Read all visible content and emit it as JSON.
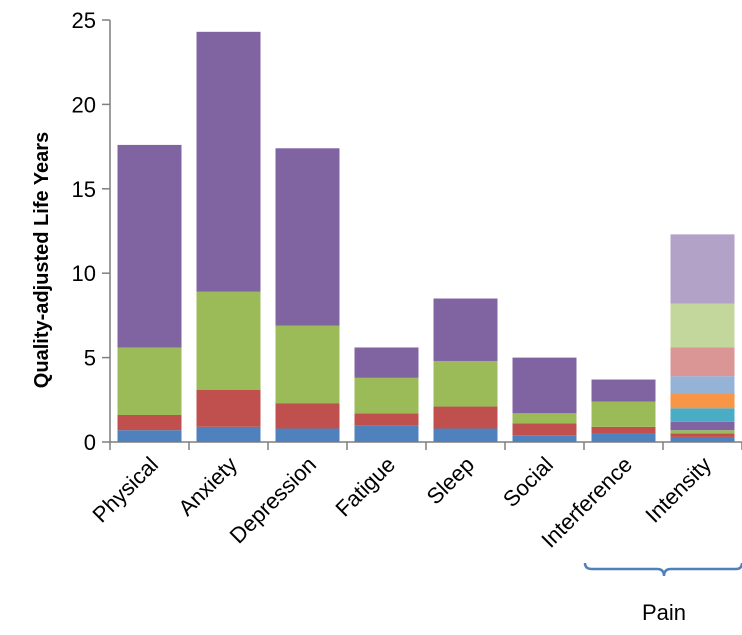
{
  "chart_data": {
    "type": "bar",
    "stacked": true,
    "title": "",
    "xlabel": "",
    "ylabel": "Quality-adjusted Life Years",
    "ylim": [
      0,
      25
    ],
    "yticks": [
      "0",
      "5",
      "10",
      "15",
      "20",
      "25"
    ],
    "categories": [
      "Physical",
      "Anxiety",
      "Depression",
      "Fatigue",
      "Sleep",
      "Social",
      "Interference",
      "Intensity"
    ],
    "group_label": {
      "text": "Pain",
      "categories": [
        "Interference",
        "Intensity"
      ]
    },
    "series": [
      {
        "color": "#4f81bd",
        "values": [
          0.7,
          0.9,
          0.8,
          1.0,
          0.8,
          0.4,
          0.5,
          0.3
        ]
      },
      {
        "color": "#c0504d",
        "values": [
          0.9,
          2.2,
          1.5,
          0.7,
          1.3,
          0.7,
          0.4,
          0.0
        ]
      },
      {
        "color": "#9bbb59",
        "values": [
          4.0,
          5.8,
          4.6,
          2.1,
          2.7,
          0.6,
          1.5,
          0.0
        ]
      },
      {
        "color": "#8064a2",
        "values": [
          12.0,
          15.4,
          10.5,
          1.8,
          3.7,
          3.3,
          1.3,
          0.0
        ]
      }
    ],
    "intensity_segments": [
      {
        "color": "#4f81bd",
        "value": 0.3
      },
      {
        "color": "#c0504d",
        "value": 0.2
      },
      {
        "color": "#9bbb59",
        "value": 0.2
      },
      {
        "color": "#8064a2",
        "value": 0.5
      },
      {
        "color": "#4bacc6",
        "value": 0.8
      },
      {
        "color": "#f79646",
        "value": 0.9
      },
      {
        "color": "#95b3d7",
        "value": 1.0
      },
      {
        "color": "#d99694",
        "value": 1.7
      },
      {
        "color": "#c3d69b",
        "value": 2.6
      },
      {
        "color": "#b3a2c7",
        "value": 4.1
      }
    ]
  }
}
